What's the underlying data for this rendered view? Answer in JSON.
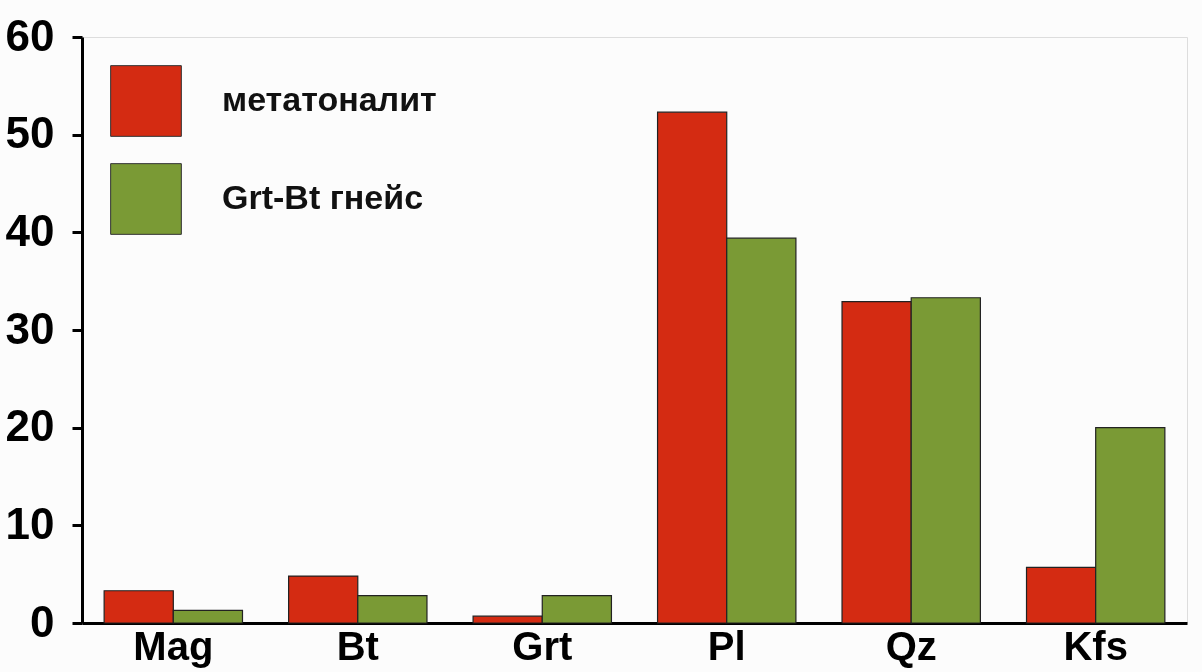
{
  "chart_data": {
    "type": "bar",
    "categories": [
      "Mag",
      "Bt",
      "Grt",
      "Pl",
      "Qz",
      "Kfs"
    ],
    "series": [
      {
        "name": "метатоналит",
        "color": "#d42b12",
        "values": [
          3.3,
          4.8,
          0.7,
          52.3,
          32.9,
          5.7
        ]
      },
      {
        "name": "Grt-Bt гнейс",
        "color": "#7a9a35",
        "values": [
          1.3,
          2.8,
          2.8,
          39.4,
          33.3,
          20.0
        ]
      }
    ],
    "ylim": [
      0,
      60
    ],
    "yticks": [
      0,
      10,
      20,
      30,
      40,
      50,
      60
    ],
    "grid": false,
    "legend": "top left"
  }
}
